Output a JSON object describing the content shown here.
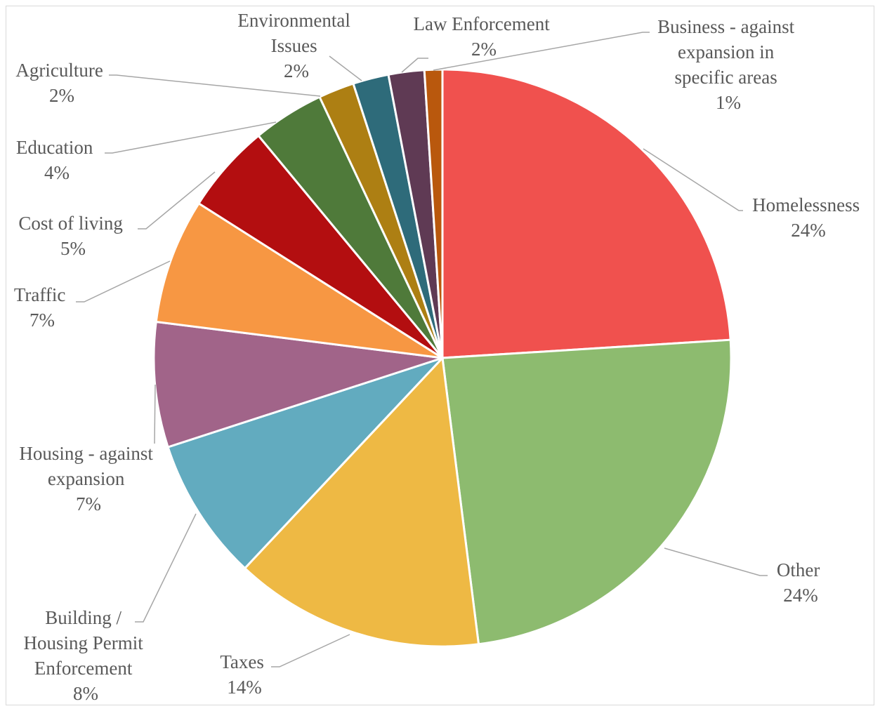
{
  "chart_data": {
    "type": "pie",
    "title": "",
    "slices": [
      {
        "label": "Homelessness",
        "value": 24,
        "pct_label": "24%",
        "color": "#f0514e"
      },
      {
        "label": "Other",
        "value": 24,
        "pct_label": "24%",
        "color": "#8dbb6f"
      },
      {
        "label": "Taxes",
        "value": 14,
        "pct_label": "14%",
        "color": "#eeb944"
      },
      {
        "label": "Building / Housing Permit Enforcement",
        "value": 8,
        "pct_label": "8%",
        "color": "#62abbf"
      },
      {
        "label": "Housing - against expansion",
        "value": 7,
        "pct_label": "7%",
        "color": "#a16489"
      },
      {
        "label": "Traffic",
        "value": 7,
        "pct_label": "7%",
        "color": "#f79743"
      },
      {
        "label": "Cost of living",
        "value": 5,
        "pct_label": "5%",
        "color": "#b30e10"
      },
      {
        "label": "Education",
        "value": 4,
        "pct_label": "4%",
        "color": "#4f7a3a"
      },
      {
        "label": "Agriculture",
        "value": 2,
        "pct_label": "2%",
        "color": "#ad7f13"
      },
      {
        "label": "Environmental Issues",
        "value": 2,
        "pct_label": "2%",
        "color": "#2e6b7a"
      },
      {
        "label": "Law Enforcement",
        "value": 2,
        "pct_label": "2%",
        "color": "#5f3a54"
      },
      {
        "label": "Business - against expansion in specific areas",
        "value": 1,
        "pct_label": "1%",
        "color": "#b9580d"
      }
    ],
    "legend": "none"
  }
}
